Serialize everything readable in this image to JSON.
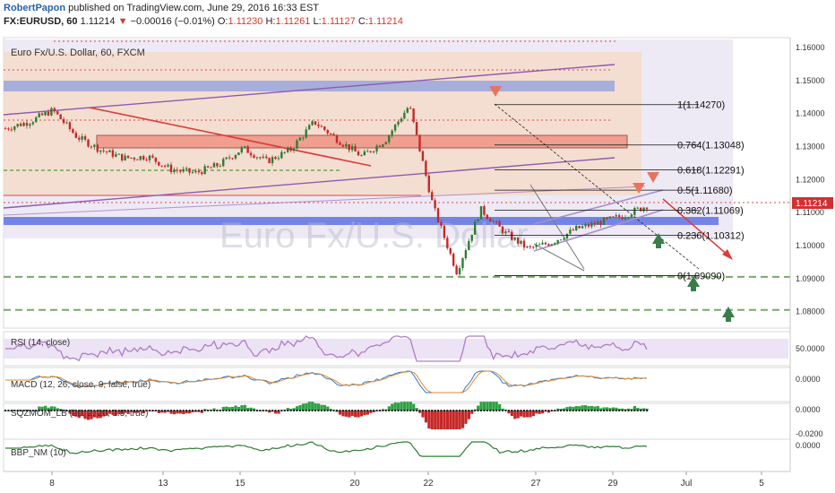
{
  "header": {
    "author": "RobertPapon",
    "published": "published on TradingView.com, June 29, 2016 16:33 EST",
    "symbol": "FX:EURUSD, 60",
    "last": "1.11214",
    "change": "−0.00016 (−0.01%)",
    "open_label": "O:",
    "open": "1.11230",
    "high_label": "H:",
    "high": "1.11261",
    "low_label": "L:",
    "low": "1.11127",
    "close_label": "C:",
    "close": "1.11214"
  },
  "colors": {
    "bull": "#2e7d32",
    "bear": "#c62828",
    "fib": "#111111",
    "rsi": "#b07cc6",
    "macd": "#2b7bd6",
    "signal": "#e08a2c",
    "price_badge": "#d32f2f",
    "up_arrow": "#3a7d4a",
    "down_arrow": "#e05a4a"
  },
  "chart_data": [
    {
      "type": "candlestick",
      "title": "Euro Fx/U.S. Dollar, 60, FXCM",
      "watermark": "Euro Fx/U.S. Dollar",
      "ylim": [
        1.075,
        1.163
      ],
      "y_ticks": [
        "1.16000",
        "1.15000",
        "1.14000",
        "1.13000",
        "1.12000",
        "1.11000",
        "1.10000",
        "1.09000",
        "1.08000"
      ],
      "x_ticks": [
        "8",
        "13",
        "15",
        "20",
        "22",
        "27",
        "29",
        "Jul",
        "5"
      ],
      "price_label": "1.11214",
      "fibonacci": [
        {
          "label": "1(1.14270)",
          "value": 1.1427
        },
        {
          "label": "0.764(1.13048)",
          "value": 1.13048
        },
        {
          "label": "0.618(1.12291)",
          "value": 1.12291
        },
        {
          "label": "0.5(1.11680)",
          "value": 1.1168
        },
        {
          "label": "0.382(1.11069)",
          "value": 1.11069
        },
        {
          "label": "0.236(1.10312)",
          "value": 1.10312
        },
        {
          "label": "0(1.09090)",
          "value": 1.0909
        }
      ],
      "support_levels": [
        1.0905,
        1.0805
      ],
      "series": [
        {
          "x": [
            "7",
            "8",
            "9",
            "10",
            "11",
            "12",
            "13",
            "14",
            "15",
            "16",
            "17",
            "18",
            "19",
            "20",
            "21",
            "22",
            "23",
            "24",
            "24.5",
            "25",
            "26",
            "27",
            "27.5",
            "28",
            "28.5",
            "29",
            "29.5",
            "30"
          ],
          "values": [
            1.1355,
            1.1375,
            1.141,
            1.133,
            1.129,
            1.1265,
            1.127,
            1.123,
            1.122,
            1.1245,
            1.1295,
            1.1255,
            1.129,
            1.1375,
            1.132,
            1.127,
            1.132,
            1.1425,
            1.112,
            1.092,
            1.111,
            1.104,
            1.099,
            1.101,
            1.105,
            1.107,
            1.109,
            1.1121
          ]
        }
      ]
    },
    {
      "type": "line",
      "title": "RSI (14, close)",
      "y_ticks": [
        "50.0000"
      ]
    },
    {
      "type": "line",
      "title": "MACD (12, 26, close, 9, false, true)",
      "y_ticks": [
        "0.0000"
      ]
    },
    {
      "type": "bar",
      "title": "SQZMOM_LB (20, 2, 20, 1.5, true)",
      "y_ticks": [
        "0.0000",
        "-0.0200"
      ]
    },
    {
      "type": "line",
      "title": "BBP_NM (10)",
      "y_ticks": [
        "0.0000"
      ]
    }
  ]
}
